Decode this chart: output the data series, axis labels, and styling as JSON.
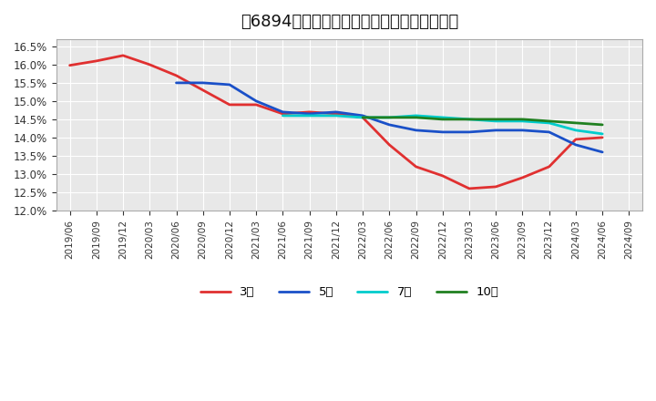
{
  "title": "［6894］　経常利益マージンの平均値の推移",
  "background_color": "#ffffff",
  "plot_bg_color": "#e8e8e8",
  "grid_color": "#ffffff",
  "ylim": [
    0.12,
    0.167
  ],
  "yticks": [
    0.12,
    0.125,
    0.13,
    0.135,
    0.14,
    0.145,
    0.15,
    0.155,
    0.16,
    0.165
  ],
  "xtick_labels": [
    "2019/06",
    "2019/09",
    "2019/12",
    "2020/03",
    "2020/06",
    "2020/09",
    "2020/12",
    "2021/03",
    "2021/06",
    "2021/09",
    "2021/12",
    "2022/03",
    "2022/06",
    "2022/09",
    "2022/12",
    "2023/03",
    "2023/06",
    "2023/09",
    "2023/12",
    "2024/03",
    "2024/06",
    "2024/09"
  ],
  "series_3y": {
    "label": "3年",
    "color": "#e03030",
    "linewidth": 2.0,
    "x_indices": [
      0,
      1,
      2,
      3,
      4,
      5,
      6,
      7,
      8,
      9,
      10,
      11,
      12,
      13,
      14,
      15,
      16,
      17,
      18,
      19,
      20
    ],
    "y": [
      0.1598,
      0.161,
      0.1625,
      0.16,
      0.157,
      0.153,
      0.149,
      0.149,
      0.1465,
      0.147,
      0.1465,
      0.1455,
      0.138,
      0.132,
      0.1295,
      0.126,
      0.1265,
      0.129,
      0.132,
      0.1395,
      0.14
    ]
  },
  "series_5y": {
    "label": "5年",
    "color": "#1a50c8",
    "linewidth": 2.0,
    "x_indices": [
      4,
      5,
      6,
      7,
      8,
      9,
      10,
      11,
      12,
      13,
      14,
      15,
      16,
      17,
      18,
      19,
      20
    ],
    "y": [
      0.155,
      0.155,
      0.1545,
      0.15,
      0.147,
      0.1465,
      0.147,
      0.146,
      0.1435,
      0.142,
      0.1415,
      0.1415,
      0.142,
      0.142,
      0.1415,
      0.138,
      0.136
    ]
  },
  "series_7y": {
    "label": "7年",
    "color": "#00cccc",
    "linewidth": 2.0,
    "x_indices": [
      8,
      9,
      10,
      11,
      12,
      13,
      14,
      15,
      16,
      17,
      18,
      19,
      20
    ],
    "y": [
      0.146,
      0.146,
      0.146,
      0.1455,
      0.1455,
      0.146,
      0.1455,
      0.145,
      0.1445,
      0.1445,
      0.144,
      0.142,
      0.141
    ]
  },
  "series_10y": {
    "label": "10年",
    "color": "#208020",
    "linewidth": 2.0,
    "x_indices": [
      11,
      12,
      13,
      14,
      15,
      16,
      17,
      18,
      19,
      20
    ],
    "y": [
      0.1455,
      0.1455,
      0.1455,
      0.145,
      0.145,
      0.145,
      0.145,
      0.1445,
      0.144,
      0.1435
    ]
  },
  "title_fontsize": 13
}
